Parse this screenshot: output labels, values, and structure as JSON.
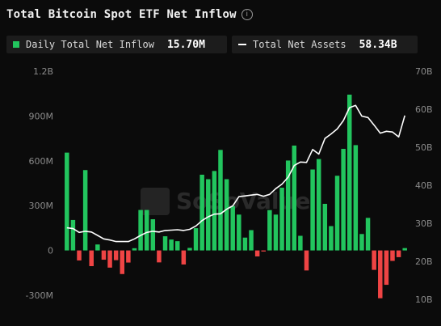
{
  "title": "Total Bitcoin Spot ETF Net Inflow",
  "info_icon": "info-icon",
  "legend": {
    "inflow": {
      "label": "Daily Total Net Inflow",
      "value": "15.70M",
      "color": "#22c55e"
    },
    "assets": {
      "label": "Total Net Assets",
      "value": "58.34B",
      "color": "#ffffff"
    }
  },
  "watermark": "SoSoValue",
  "colors": {
    "positive": "#22c55e",
    "negative": "#ef4444",
    "line": "#ffffff",
    "background": "#0b0b0b"
  },
  "chart_data": {
    "type": "bar",
    "title": "Total Bitcoin Spot ETF Net Inflow",
    "left_axis": {
      "ticks": [
        "-300M",
        "0",
        "300M",
        "600M",
        "900M",
        "1.2B"
      ],
      "range": [
        -300,
        1200
      ],
      "unit": "M"
    },
    "right_axis": {
      "ticks": [
        "10B",
        "20B",
        "30B",
        "40B",
        "50B",
        "60B",
        "70B"
      ],
      "range": [
        10,
        70
      ],
      "unit": "B"
    },
    "grid": false,
    "series": [
      {
        "name": "Daily Total Net Inflow",
        "type": "bar",
        "values": [
          655,
          204,
          -67,
          538,
          -105,
          40,
          -62,
          -115,
          -65,
          -158,
          -81,
          15,
          271,
          271,
          209,
          -80,
          95,
          73,
          62,
          -94,
          17,
          149,
          507,
          477,
          532,
          673,
          477,
          297,
          240,
          86,
          136,
          -40,
          -7,
          270,
          240,
          420,
          602,
          702,
          98,
          -134,
          542,
          612,
          312,
          163,
          500,
          680,
          1043,
          705,
          110,
          218,
          -130,
          -320,
          -230,
          -70,
          -45,
          15.7
        ]
      },
      {
        "name": "Total Net Assets",
        "type": "line",
        "values": [
          28.8,
          28.6,
          27.6,
          27.9,
          27.7,
          26.8,
          25.9,
          25.6,
          25.2,
          25.2,
          25.2,
          25.9,
          26.8,
          27.6,
          27.9,
          27.7,
          28.1,
          28.2,
          28.3,
          28.1,
          28.4,
          29.3,
          30.7,
          31.7,
          32.4,
          32.5,
          33.7,
          34.6,
          37.0,
          37.2,
          37.4,
          37.6,
          37.1,
          37.6,
          39.1,
          40.3,
          42.1,
          45.2,
          46.1,
          46.0,
          49.4,
          48.2,
          52.3,
          53.5,
          54.8,
          57.0,
          60.4,
          61.0,
          58.2,
          57.8,
          55.8,
          53.7,
          54.2,
          54.0,
          52.7,
          58.34
        ]
      }
    ]
  }
}
